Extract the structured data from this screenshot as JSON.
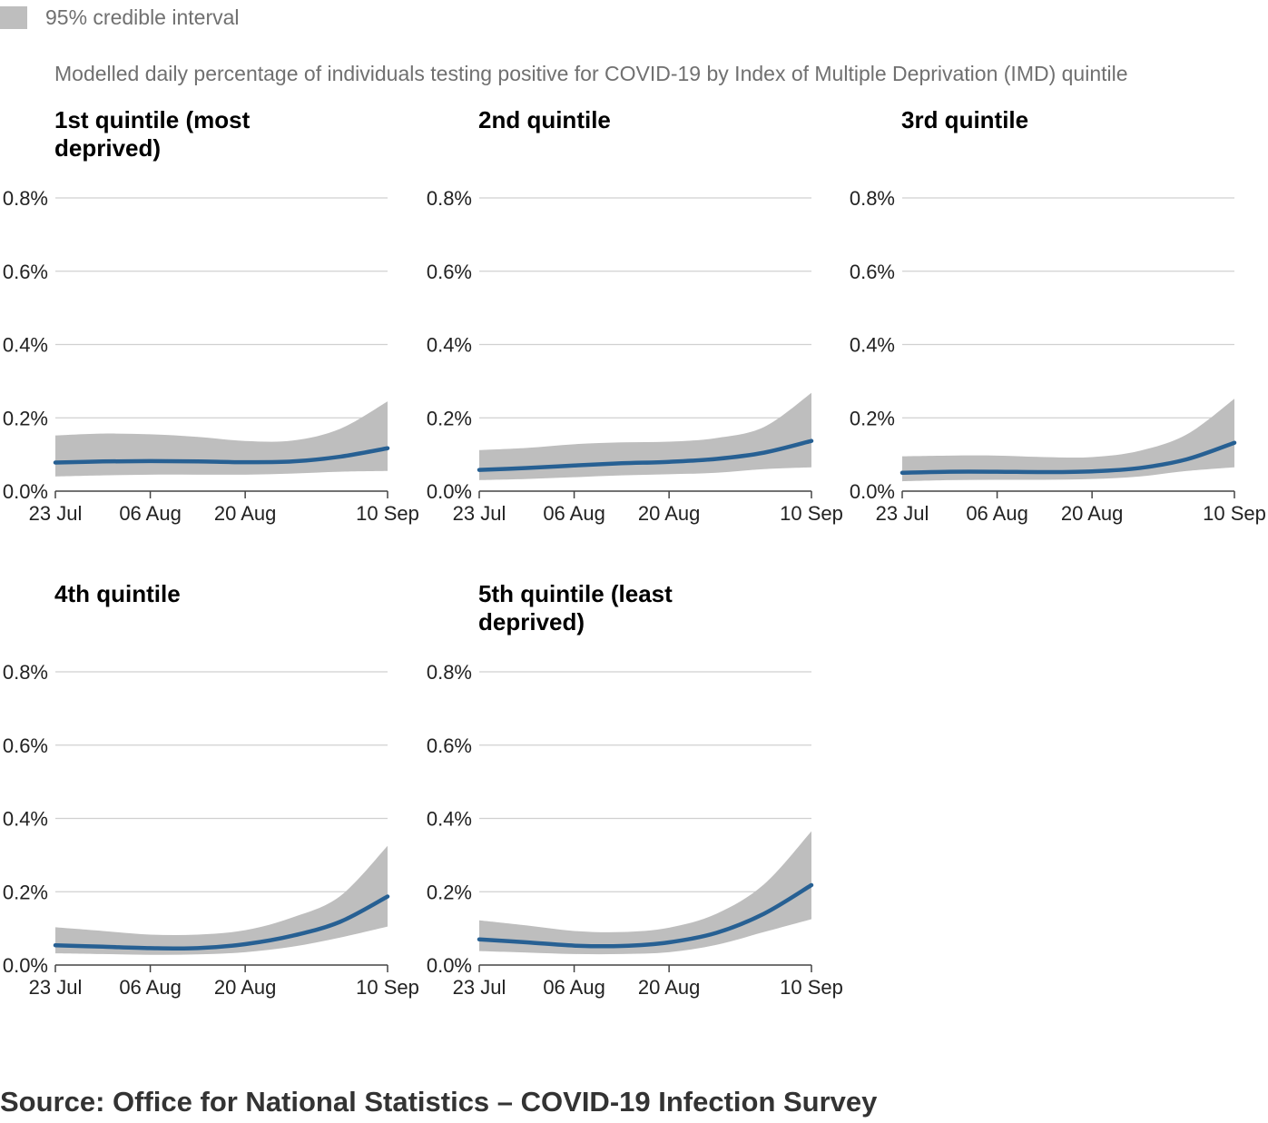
{
  "legend": {
    "label": "95% credible interval",
    "band_color": "#bebebe"
  },
  "subtitle": "Modelled daily percentage of individuals testing positive for COVID-19 by Index of Multiple Deprivation (IMD) quintile",
  "source": "Source: Office for National Statistics – COVID-19 Infection Survey",
  "line_color": "#276093",
  "chart_data": [
    {
      "type": "line",
      "title": "1st quintile (most deprived)",
      "x": [
        "23 Jul",
        "30 Jul",
        "06 Aug",
        "13 Aug",
        "20 Aug",
        "27 Aug",
        "03 Sep",
        "10 Sep"
      ],
      "x_ticks": [
        "23 Jul",
        "06 Aug",
        "20 Aug",
        "10 Sep"
      ],
      "y_ticks": [
        "0.0%",
        "0.2%",
        "0.4%",
        "0.6%",
        "0.8%"
      ],
      "ylim": [
        0,
        0.8
      ],
      "series": [
        {
          "values": [
            0.078,
            0.081,
            0.082,
            0.081,
            0.079,
            0.081,
            0.094,
            0.117
          ]
        },
        {
          "interval": "lower",
          "values": [
            0.04,
            0.043,
            0.045,
            0.045,
            0.045,
            0.048,
            0.053,
            0.055
          ]
        },
        {
          "interval": "upper",
          "values": [
            0.152,
            0.157,
            0.155,
            0.148,
            0.137,
            0.138,
            0.17,
            0.245
          ]
        }
      ]
    },
    {
      "type": "line",
      "title": "2nd quintile",
      "x": [
        "23 Jul",
        "30 Jul",
        "06 Aug",
        "13 Aug",
        "20 Aug",
        "27 Aug",
        "03 Sep",
        "10 Sep"
      ],
      "x_ticks": [
        "23 Jul",
        "06 Aug",
        "20 Aug",
        "10 Sep"
      ],
      "y_ticks": [
        "0.0%",
        "0.2%",
        "0.4%",
        "0.6%",
        "0.8%"
      ],
      "ylim": [
        0,
        0.8
      ],
      "series": [
        {
          "values": [
            0.058,
            0.063,
            0.07,
            0.076,
            0.08,
            0.088,
            0.105,
            0.137
          ]
        },
        {
          "interval": "lower",
          "values": [
            0.03,
            0.033,
            0.038,
            0.043,
            0.046,
            0.05,
            0.06,
            0.065
          ]
        },
        {
          "interval": "upper",
          "values": [
            0.112,
            0.118,
            0.128,
            0.133,
            0.135,
            0.145,
            0.175,
            0.268
          ]
        }
      ]
    },
    {
      "type": "line",
      "title": "3rd quintile",
      "x": [
        "23 Jul",
        "30 Jul",
        "06 Aug",
        "13 Aug",
        "20 Aug",
        "27 Aug",
        "03 Sep",
        "10 Sep"
      ],
      "x_ticks": [
        "23 Jul",
        "06 Aug",
        "20 Aug",
        "10 Sep"
      ],
      "y_ticks": [
        "0.0%",
        "0.2%",
        "0.4%",
        "0.6%",
        "0.8%"
      ],
      "ylim": [
        0,
        0.8
      ],
      "series": [
        {
          "values": [
            0.05,
            0.053,
            0.053,
            0.052,
            0.054,
            0.063,
            0.087,
            0.132
          ]
        },
        {
          "interval": "lower",
          "values": [
            0.027,
            0.03,
            0.031,
            0.031,
            0.033,
            0.04,
            0.055,
            0.065
          ]
        },
        {
          "interval": "upper",
          "values": [
            0.095,
            0.097,
            0.097,
            0.093,
            0.093,
            0.11,
            0.155,
            0.252
          ]
        }
      ]
    },
    {
      "type": "line",
      "title": "4th quintile",
      "x": [
        "23 Jul",
        "30 Jul",
        "06 Aug",
        "13 Aug",
        "20 Aug",
        "27 Aug",
        "03 Sep",
        "10 Sep"
      ],
      "x_ticks": [
        "23 Jul",
        "06 Aug",
        "20 Aug",
        "10 Sep"
      ],
      "y_ticks": [
        "0.0%",
        "0.2%",
        "0.4%",
        "0.6%",
        "0.8%"
      ],
      "ylim": [
        0,
        0.8
      ],
      "series": [
        {
          "values": [
            0.054,
            0.05,
            0.046,
            0.046,
            0.057,
            0.08,
            0.118,
            0.187
          ]
        },
        {
          "interval": "lower",
          "values": [
            0.032,
            0.03,
            0.028,
            0.029,
            0.035,
            0.05,
            0.075,
            0.105
          ]
        },
        {
          "interval": "upper",
          "values": [
            0.103,
            0.093,
            0.083,
            0.083,
            0.095,
            0.13,
            0.188,
            0.325
          ]
        }
      ]
    },
    {
      "type": "line",
      "title": "5th quintile (least deprived)",
      "x": [
        "23 Jul",
        "30 Jul",
        "06 Aug",
        "13 Aug",
        "20 Aug",
        "27 Aug",
        "03 Sep",
        "10 Sep"
      ],
      "x_ticks": [
        "23 Jul",
        "06 Aug",
        "20 Aug",
        "10 Sep"
      ],
      "y_ticks": [
        "0.0%",
        "0.2%",
        "0.4%",
        "0.6%",
        "0.8%"
      ],
      "ylim": [
        0,
        0.8
      ],
      "series": [
        {
          "values": [
            0.07,
            0.062,
            0.053,
            0.052,
            0.062,
            0.088,
            0.14,
            0.218
          ]
        },
        {
          "interval": "lower",
          "values": [
            0.038,
            0.034,
            0.03,
            0.03,
            0.035,
            0.055,
            0.09,
            0.125
          ]
        },
        {
          "interval": "upper",
          "values": [
            0.122,
            0.108,
            0.093,
            0.09,
            0.102,
            0.14,
            0.22,
            0.365
          ]
        }
      ]
    }
  ]
}
